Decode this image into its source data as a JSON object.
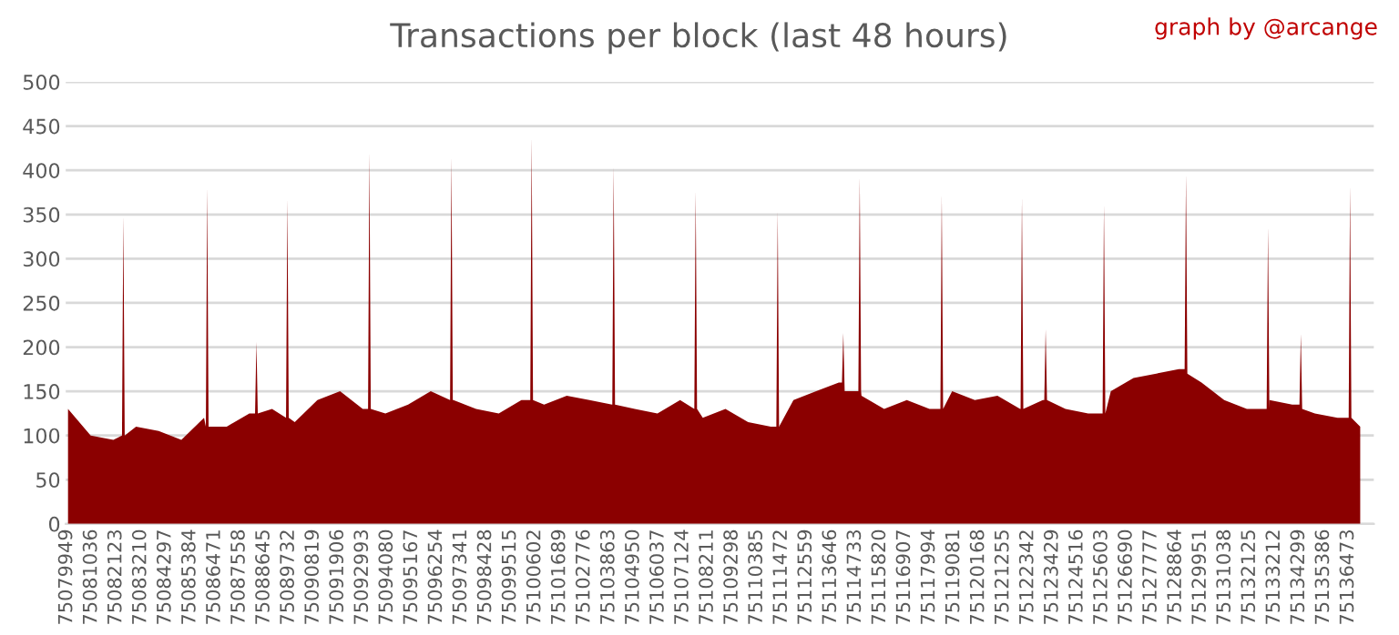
{
  "chart_data": {
    "type": "area",
    "title": "Transactions per block (last 48 hours)",
    "annotations": [
      "graph by @arcange"
    ],
    "x": [
      75080000,
      75081000,
      75082000,
      75082381,
      75082441,
      75082501,
      75083000,
      75084000,
      75085000,
      75086000,
      75086080,
      75086140,
      75086200,
      75087000,
      75088000,
      75088251,
      75088311,
      75088371,
      75089000,
      75089617,
      75089677,
      75089737,
      75090000,
      75091000,
      75092000,
      75093000,
      75093235,
      75093295,
      75093355,
      75094000,
      75095000,
      75096000,
      75096853,
      75096913,
      75096973,
      75097000,
      75098000,
      75099000,
      75100000,
      75100391,
      75100451,
      75100511,
      75101000,
      75102000,
      75103000,
      75104000,
      75104009,
      75104069,
      75104129,
      75105000,
      75106000,
      75107000,
      75107627,
      75107687,
      75107747,
      75108000,
      75109000,
      75110000,
      75111000,
      75111245,
      75111305,
      75111365,
      75112000,
      75113000,
      75114000,
      75114139,
      75114199,
      75114259,
      75114863,
      75114923,
      75114983,
      75115000,
      75116000,
      75117000,
      75118000,
      75118481,
      75118541,
      75118601,
      75119000,
      75120000,
      75121000,
      75122000,
      75122019,
      75122079,
      75122139,
      75123000,
      75123064,
      75123124,
      75123184,
      75124000,
      75125000,
      75125637,
      75125697,
      75125757,
      75126000,
      75127000,
      75128000,
      75129000,
      75129255,
      75129315,
      75129375,
      75130000,
      75131000,
      75132000,
      75132873,
      75132933,
      75132993,
      75133000,
      75134000,
      75134320,
      75134380,
      75134440,
      75135000,
      75136000,
      75136491,
      75136551,
      75136611,
      75137000
    ],
    "series": [
      {
        "color": "#8b0000",
        "values": [
          130,
          100,
          95,
          100,
          349,
          100,
          110,
          105,
          95,
          120,
          110,
          381,
          110,
          110,
          125,
          125,
          206,
          125,
          130,
          120,
          368,
          120,
          115,
          140,
          150,
          130,
          130,
          421,
          130,
          125,
          135,
          150,
          140,
          416,
          140,
          140,
          130,
          125,
          140,
          140,
          438,
          140,
          135,
          145,
          140,
          135,
          135,
          405,
          135,
          130,
          125,
          140,
          130,
          377,
          130,
          120,
          130,
          115,
          110,
          110,
          355,
          110,
          140,
          150,
          160,
          160,
          216,
          150,
          150,
          393,
          150,
          145,
          130,
          140,
          130,
          130,
          373,
          130,
          150,
          140,
          145,
          130,
          130,
          370,
          130,
          140,
          140,
          220,
          140,
          130,
          125,
          125,
          362,
          125,
          150,
          165,
          170,
          175,
          175,
          396,
          170,
          160,
          140,
          130,
          130,
          336,
          130,
          140,
          135,
          135,
          215,
          130,
          125,
          120,
          120,
          383,
          120,
          110
        ]
      }
    ],
    "xlim": [
      75079900,
      75137600
    ],
    "xticks": [
      75079949,
      75081036,
      75082123,
      75083210,
      75084297,
      75085384,
      75086471,
      75087558,
      75088645,
      75089732,
      75090819,
      75091906,
      75092993,
      75094080,
      75095167,
      75096254,
      75097341,
      75098428,
      75099515,
      75100602,
      75101689,
      75102776,
      75103863,
      75104950,
      75106037,
      75107124,
      75108211,
      75109298,
      75110385,
      75111472,
      75112559,
      75113646,
      75114733,
      75115820,
      75116907,
      75117994,
      75119081,
      75120168,
      75121255,
      75122342,
      75123429,
      75124516,
      75125603,
      75126690,
      75127777,
      75128864,
      75129951,
      75131038,
      75132125,
      75133212,
      75134299,
      75135386,
      75136473
    ],
    "ylim": [
      0,
      500
    ],
    "yticks": [
      0,
      50,
      100,
      150,
      200,
      250,
      300,
      350,
      400,
      450,
      500
    ],
    "grid": "y",
    "legend": false
  }
}
